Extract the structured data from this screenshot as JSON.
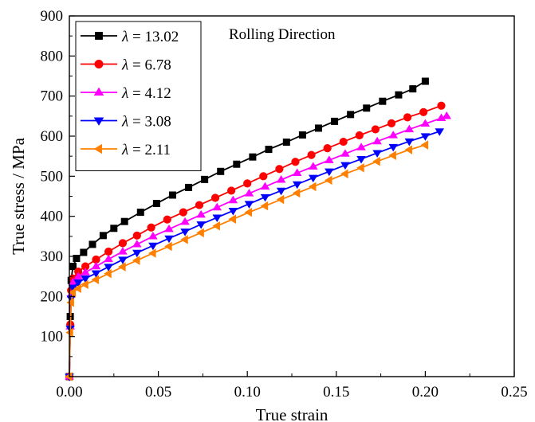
{
  "chart_data": {
    "type": "line",
    "title": "",
    "xlabel": "True strain",
    "ylabel": "True stress / MPa",
    "annotation": "Rolling Direction",
    "xlim": [
      0.0,
      0.25
    ],
    "ylim": [
      0,
      900
    ],
    "xticks": [
      "0.00",
      "0.05",
      "0.10",
      "0.15",
      "0.20",
      "0.25"
    ],
    "yticks": [
      "100",
      "200",
      "300",
      "400",
      "500",
      "600",
      "700",
      "800",
      "900"
    ],
    "grid": false,
    "legend_position": "top-left",
    "series": [
      {
        "name": "λ = 13.02",
        "symbol": "λ",
        "value_text": " = 13.02",
        "color": "#000000",
        "marker": "square",
        "x": [
          0.0,
          0.0005,
          0.001,
          0.002,
          0.004,
          0.008,
          0.013,
          0.019,
          0.025,
          0.031,
          0.04,
          0.049,
          0.058,
          0.067,
          0.076,
          0.085,
          0.094,
          0.103,
          0.112,
          0.122,
          0.131,
          0.14,
          0.149,
          0.158,
          0.167,
          0.176,
          0.185,
          0.193,
          0.2
        ],
        "y": [
          0,
          150,
          240,
          275,
          295,
          310,
          330,
          352,
          370,
          387,
          410,
          432,
          453,
          472,
          492,
          512,
          530,
          548,
          567,
          585,
          603,
          620,
          637,
          654,
          670,
          687,
          703,
          718,
          737
        ]
      },
      {
        "name": "λ = 6.78",
        "symbol": "λ",
        "value_text": " = 6.78",
        "color": "#ff0000",
        "marker": "circle",
        "x": [
          0.0,
          0.0005,
          0.001,
          0.002,
          0.005,
          0.009,
          0.015,
          0.022,
          0.03,
          0.038,
          0.046,
          0.055,
          0.064,
          0.073,
          0.082,
          0.091,
          0.1,
          0.109,
          0.118,
          0.127,
          0.136,
          0.145,
          0.154,
          0.163,
          0.172,
          0.181,
          0.19,
          0.199,
          0.209
        ],
        "y": [
          0,
          130,
          215,
          245,
          262,
          275,
          292,
          312,
          333,
          352,
          372,
          392,
          410,
          428,
          446,
          464,
          482,
          500,
          518,
          536,
          553,
          570,
          586,
          602,
          617,
          632,
          647,
          660,
          676
        ]
      },
      {
        "name": "λ = 4.12",
        "symbol": "λ",
        "value_text": " = 4.12",
        "color": "#ff00ff",
        "marker": "triangle-up",
        "x": [
          0.0,
          0.0005,
          0.001,
          0.002,
          0.005,
          0.009,
          0.015,
          0.022,
          0.03,
          0.038,
          0.047,
          0.056,
          0.065,
          0.074,
          0.083,
          0.092,
          0.101,
          0.11,
          0.119,
          0.128,
          0.137,
          0.146,
          0.155,
          0.164,
          0.173,
          0.182,
          0.191,
          0.2,
          0.209,
          0.212
        ],
        "y": [
          0,
          125,
          205,
          235,
          250,
          260,
          275,
          293,
          312,
          330,
          350,
          368,
          386,
          404,
          422,
          440,
          457,
          474,
          491,
          508,
          524,
          540,
          556,
          572,
          587,
          602,
          617,
          631,
          645,
          650
        ]
      },
      {
        "name": "λ = 3.08",
        "symbol": "λ",
        "value_text": " = 3.08",
        "color": "#0000ff",
        "marker": "triangle-down",
        "x": [
          0.0,
          0.0005,
          0.001,
          0.002,
          0.005,
          0.009,
          0.015,
          0.022,
          0.03,
          0.038,
          0.047,
          0.056,
          0.065,
          0.074,
          0.083,
          0.092,
          0.101,
          0.11,
          0.119,
          0.128,
          0.137,
          0.146,
          0.155,
          0.164,
          0.173,
          0.182,
          0.191,
          0.2,
          0.208
        ],
        "y": [
          0,
          120,
          195,
          222,
          235,
          245,
          258,
          274,
          292,
          309,
          327,
          345,
          362,
          380,
          397,
          414,
          431,
          448,
          464,
          480,
          496,
          512,
          528,
          543,
          558,
          573,
          587,
          600,
          612
        ]
      },
      {
        "name": "λ = 2.11",
        "symbol": "λ",
        "value_text": " = 2.11",
        "color": "#ff8000",
        "marker": "triangle-left",
        "x": [
          0.0,
          0.0005,
          0.001,
          0.002,
          0.005,
          0.009,
          0.015,
          0.022,
          0.03,
          0.038,
          0.047,
          0.056,
          0.065,
          0.074,
          0.083,
          0.092,
          0.101,
          0.11,
          0.119,
          0.128,
          0.137,
          0.146,
          0.155,
          0.164,
          0.173,
          0.182,
          0.191,
          0.2
        ],
        "y": [
          0,
          110,
          185,
          210,
          220,
          230,
          242,
          257,
          274,
          290,
          308,
          325,
          342,
          359,
          376,
          393,
          410,
          426,
          442,
          458,
          474,
          490,
          506,
          521,
          537,
          552,
          566,
          578
        ]
      }
    ]
  }
}
